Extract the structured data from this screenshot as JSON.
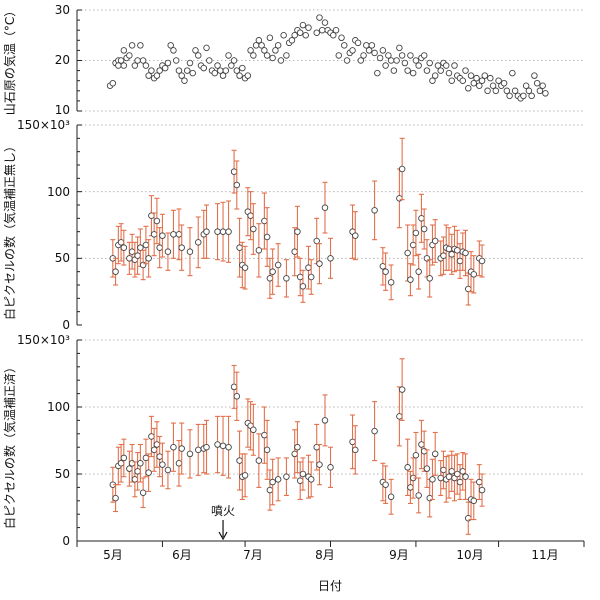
{
  "colors": {
    "error_bar": "#e2714d",
    "marker": "#444444",
    "grid": "#b8b8b8"
  },
  "x_axis": {
    "label": "日付",
    "months": [
      "5月",
      "6月",
      "7月",
      "8月",
      "9月",
      "10月",
      "11月"
    ],
    "annotation": {
      "text": "噴火",
      "x": 53
    }
  },
  "chart_data": [
    {
      "type": "scatter",
      "ylabel": "山石原の気温（°C）",
      "ylim": [
        10,
        30
      ],
      "yticks": [
        "10",
        "20",
        "30"
      ],
      "grid": true,
      "points": [
        [
          12,
          15
        ],
        [
          13,
          15.5
        ],
        [
          14,
          19.5
        ],
        [
          15,
          20
        ],
        [
          15,
          19
        ],
        [
          16,
          20
        ],
        [
          17,
          22
        ],
        [
          17,
          19
        ],
        [
          18,
          20.5
        ],
        [
          19,
          21
        ],
        [
          20,
          23
        ],
        [
          21,
          19
        ],
        [
          22,
          20
        ],
        [
          23,
          23
        ],
        [
          24,
          20
        ],
        [
          25,
          19
        ],
        [
          26,
          17
        ],
        [
          27,
          18
        ],
        [
          28,
          16.5
        ],
        [
          29,
          17
        ],
        [
          30,
          18
        ],
        [
          31,
          19
        ],
        [
          32,
          18.5
        ],
        [
          33,
          19.5
        ],
        [
          34,
          23
        ],
        [
          35,
          22
        ],
        [
          36,
          20
        ],
        [
          37,
          18
        ],
        [
          38,
          17
        ],
        [
          39,
          16
        ],
        [
          40,
          18
        ],
        [
          41,
          19.5
        ],
        [
          42,
          17.5
        ],
        [
          43,
          22
        ],
        [
          44,
          21
        ],
        [
          45,
          19
        ],
        [
          46,
          18.5
        ],
        [
          47,
          22.5
        ],
        [
          48,
          20
        ],
        [
          49,
          18
        ],
        [
          50,
          17.5
        ],
        [
          51,
          19
        ],
        [
          52,
          18
        ],
        [
          53,
          17
        ],
        [
          54,
          18
        ],
        [
          55,
          21
        ],
        [
          56,
          19
        ],
        [
          57,
          20
        ],
        [
          58,
          18
        ],
        [
          59,
          17
        ],
        [
          60,
          18.5
        ],
        [
          61,
          16.5
        ],
        [
          62,
          17
        ],
        [
          63,
          22
        ],
        [
          64,
          21
        ],
        [
          65,
          23
        ],
        [
          66,
          24
        ],
        [
          67,
          23
        ],
        [
          68,
          22
        ],
        [
          69,
          21
        ],
        [
          70,
          24.5
        ],
        [
          71,
          20.5
        ],
        [
          72,
          22
        ],
        [
          73,
          23
        ],
        [
          74,
          20
        ],
        [
          75,
          25
        ],
        [
          76,
          21
        ],
        [
          77,
          23.5
        ],
        [
          78,
          24
        ],
        [
          79,
          25
        ],
        [
          80,
          26
        ],
        [
          81,
          25.5
        ],
        [
          82,
          27
        ],
        [
          83,
          25
        ],
        [
          84,
          26.5
        ],
        [
          87,
          25.5
        ],
        [
          88,
          28.5
        ],
        [
          89,
          26
        ],
        [
          90,
          27.5
        ],
        [
          91,
          26
        ],
        [
          92,
          25.5
        ],
        [
          93,
          25
        ],
        [
          94,
          26
        ],
        [
          95,
          21
        ],
        [
          96,
          24.5
        ],
        [
          97,
          23
        ],
        [
          98,
          20
        ],
        [
          99,
          21.5
        ],
        [
          100,
          22
        ],
        [
          101,
          24
        ],
        [
          102,
          23.5
        ],
        [
          103,
          20
        ],
        [
          104,
          21
        ],
        [
          105,
          23
        ],
        [
          106,
          22
        ],
        [
          107,
          23
        ],
        [
          108,
          21.5
        ],
        [
          109,
          17.5
        ],
        [
          110,
          20.5
        ],
        [
          111,
          22
        ],
        [
          112,
          19
        ],
        [
          113,
          21
        ],
        [
          114,
          20
        ],
        [
          115,
          18
        ],
        [
          116,
          20
        ],
        [
          117,
          22.5
        ],
        [
          118,
          21
        ],
        [
          119,
          19.5
        ],
        [
          120,
          18
        ],
        [
          121,
          21
        ],
        [
          122,
          17.5
        ],
        [
          123,
          20
        ],
        [
          124,
          19
        ],
        [
          125,
          20.5
        ],
        [
          126,
          21
        ],
        [
          127,
          18
        ],
        [
          128,
          19.5
        ],
        [
          129,
          16
        ],
        [
          130,
          17
        ],
        [
          131,
          19
        ],
        [
          132,
          18
        ],
        [
          133,
          19.5
        ],
        [
          134,
          19
        ],
        [
          135,
          17.5
        ],
        [
          136,
          16
        ],
        [
          137,
          19
        ],
        [
          138,
          17
        ],
        [
          139,
          16.5
        ],
        [
          140,
          16
        ],
        [
          141,
          18
        ],
        [
          142,
          14.5
        ],
        [
          143,
          17
        ],
        [
          144,
          15.5
        ],
        [
          145,
          16.5
        ],
        [
          146,
          15
        ],
        [
          147,
          16
        ],
        [
          148,
          17
        ],
        [
          149,
          14
        ],
        [
          150,
          16.5
        ],
        [
          151,
          15
        ],
        [
          152,
          14
        ],
        [
          153,
          16
        ],
        [
          154,
          15
        ],
        [
          155,
          15.5
        ],
        [
          156,
          14
        ],
        [
          157,
          13
        ],
        [
          158,
          17.5
        ],
        [
          159,
          14
        ],
        [
          160,
          13
        ],
        [
          161,
          12.5
        ],
        [
          162,
          13
        ],
        [
          163,
          15
        ],
        [
          164,
          14
        ],
        [
          165,
          13
        ],
        [
          166,
          17
        ],
        [
          167,
          15.5
        ],
        [
          168,
          14
        ],
        [
          169,
          15
        ],
        [
          170,
          13.5
        ]
      ]
    },
    {
      "type": "scatter",
      "ylabel": "白ピクセルの数（気温補正無し）",
      "ylim": [
        0,
        150
      ],
      "yticks": [
        "0",
        "50",
        "100",
        "150×10³"
      ],
      "grid": true,
      "points": [
        [
          13,
          50,
          14
        ],
        [
          14,
          40,
          10
        ],
        [
          15,
          60,
          14
        ],
        [
          16,
          62,
          14
        ],
        [
          17,
          58,
          13
        ],
        [
          19,
          50,
          12
        ],
        [
          20,
          55,
          13
        ],
        [
          21,
          49,
          13
        ],
        [
          22,
          52,
          14
        ],
        [
          23,
          58,
          14
        ],
        [
          24,
          45,
          11
        ],
        [
          25,
          60,
          14
        ],
        [
          26,
          50,
          14
        ],
        [
          27,
          82,
          15
        ],
        [
          28,
          68,
          16
        ],
        [
          29,
          78,
          17
        ],
        [
          30,
          58,
          15
        ],
        [
          31,
          67,
          16
        ],
        [
          33,
          55,
          14
        ],
        [
          35,
          68,
          18
        ],
        [
          37,
          68,
          19
        ],
        [
          38,
          58,
          17
        ],
        [
          41,
          55,
          18
        ],
        [
          44,
          62,
          19
        ],
        [
          46,
          68,
          18
        ],
        [
          47,
          70,
          20
        ],
        [
          51,
          70,
          21
        ],
        [
          53,
          70,
          22
        ],
        [
          55,
          70,
          23
        ],
        [
          57,
          115,
          16
        ],
        [
          58,
          105,
          18
        ],
        [
          59,
          58,
          22
        ],
        [
          60,
          45,
          17
        ],
        [
          61,
          43,
          16
        ],
        [
          62,
          85,
          18
        ],
        [
          63,
          82,
          18
        ],
        [
          64,
          72,
          19
        ],
        [
          66,
          56,
          20
        ],
        [
          68,
          78,
          21
        ],
        [
          69,
          66,
          22
        ],
        [
          70,
          35,
          15
        ],
        [
          71,
          40,
          17
        ],
        [
          73,
          45,
          16
        ],
        [
          76,
          35,
          14
        ],
        [
          79,
          55,
          18
        ],
        [
          80,
          70,
          19
        ],
        [
          81,
          36,
          14
        ],
        [
          82,
          29,
          12
        ],
        [
          84,
          43,
          16
        ],
        [
          85,
          36,
          13
        ],
        [
          87,
          63,
          17
        ],
        [
          88,
          46,
          15
        ],
        [
          90,
          88,
          19
        ],
        [
          92,
          50,
          15
        ],
        [
          100,
          70,
          20
        ],
        [
          101,
          67,
          18
        ],
        [
          108,
          86,
          22
        ],
        [
          111,
          44,
          14
        ],
        [
          112,
          40,
          14
        ],
        [
          114,
          32,
          13
        ],
        [
          117,
          95,
          22
        ],
        [
          118,
          117,
          23
        ],
        [
          120,
          54,
          21
        ],
        [
          121,
          34,
          12
        ],
        [
          122,
          60,
          15
        ],
        [
          123,
          69,
          17
        ],
        [
          124,
          40,
          13
        ],
        [
          125,
          80,
          18
        ],
        [
          126,
          72,
          15
        ],
        [
          127,
          50,
          14
        ],
        [
          128,
          35,
          14
        ],
        [
          129,
          60,
          15
        ],
        [
          130,
          63,
          16
        ],
        [
          132,
          50,
          13
        ],
        [
          133,
          52,
          14
        ],
        [
          134,
          58,
          17
        ],
        [
          135,
          57,
          16
        ],
        [
          136,
          53,
          15
        ],
        [
          137,
          57,
          17
        ],
        [
          138,
          56,
          15
        ],
        [
          139,
          48,
          13
        ],
        [
          140,
          55,
          14
        ],
        [
          141,
          54,
          17
        ],
        [
          142,
          27,
          12
        ],
        [
          143,
          40,
          15
        ],
        [
          144,
          38,
          14
        ],
        [
          146,
          50,
          13
        ],
        [
          147,
          48,
          12
        ]
      ]
    },
    {
      "type": "scatter",
      "ylabel": "白ピクセルの数（気温補正済）",
      "ylim": [
        0,
        150
      ],
      "yticks": [
        "0",
        "50",
        "100",
        "150×10³"
      ],
      "grid": true,
      "points": [
        [
          13,
          42,
          13
        ],
        [
          14,
          32,
          10
        ],
        [
          15,
          56,
          14
        ],
        [
          16,
          58,
          14
        ],
        [
          17,
          62,
          14
        ],
        [
          19,
          54,
          13
        ],
        [
          20,
          58,
          14
        ],
        [
          21,
          46,
          13
        ],
        [
          22,
          52,
          14
        ],
        [
          23,
          58,
          14
        ],
        [
          24,
          36,
          11
        ],
        [
          25,
          62,
          14
        ],
        [
          26,
          51,
          14
        ],
        [
          27,
          78,
          15
        ],
        [
          28,
          68,
          16
        ],
        [
          29,
          72,
          17
        ],
        [
          30,
          63,
          15
        ],
        [
          31,
          57,
          16
        ],
        [
          33,
          53,
          14
        ],
        [
          35,
          70,
          18
        ],
        [
          37,
          58,
          17
        ],
        [
          38,
          69,
          19
        ],
        [
          41,
          65,
          18
        ],
        [
          44,
          68,
          19
        ],
        [
          46,
          69,
          18
        ],
        [
          47,
          70,
          20
        ],
        [
          51,
          72,
          21
        ],
        [
          53,
          71,
          22
        ],
        [
          55,
          70,
          23
        ],
        [
          57,
          115,
          16
        ],
        [
          58,
          108,
          18
        ],
        [
          59,
          60,
          22
        ],
        [
          60,
          48,
          17
        ],
        [
          61,
          49,
          16
        ],
        [
          62,
          88,
          18
        ],
        [
          63,
          86,
          18
        ],
        [
          64,
          83,
          19
        ],
        [
          66,
          60,
          20
        ],
        [
          68,
          79,
          21
        ],
        [
          69,
          68,
          22
        ],
        [
          70,
          38,
          15
        ],
        [
          71,
          44,
          17
        ],
        [
          73,
          46,
          16
        ],
        [
          76,
          48,
          14
        ],
        [
          79,
          65,
          18
        ],
        [
          80,
          70,
          19
        ],
        [
          81,
          45,
          14
        ],
        [
          82,
          50,
          12
        ],
        [
          84,
          48,
          16
        ],
        [
          85,
          46,
          13
        ],
        [
          87,
          70,
          17
        ],
        [
          88,
          57,
          15
        ],
        [
          90,
          90,
          19
        ],
        [
          92,
          55,
          15
        ],
        [
          100,
          74,
          20
        ],
        [
          101,
          68,
          18
        ],
        [
          108,
          82,
          22
        ],
        [
          111,
          44,
          14
        ],
        [
          112,
          42,
          14
        ],
        [
          114,
          33,
          13
        ],
        [
          117,
          93,
          22
        ],
        [
          118,
          113,
          23
        ],
        [
          120,
          55,
          21
        ],
        [
          121,
          40,
          12
        ],
        [
          122,
          47,
          15
        ],
        [
          123,
          64,
          17
        ],
        [
          124,
          34,
          13
        ],
        [
          125,
          72,
          18
        ],
        [
          126,
          67,
          15
        ],
        [
          127,
          54,
          14
        ],
        [
          128,
          32,
          14
        ],
        [
          129,
          46,
          15
        ],
        [
          130,
          65,
          16
        ],
        [
          132,
          47,
          13
        ],
        [
          133,
          53,
          14
        ],
        [
          134,
          46,
          17
        ],
        [
          135,
          48,
          16
        ],
        [
          136,
          52,
          15
        ],
        [
          137,
          47,
          17
        ],
        [
          138,
          50,
          15
        ],
        [
          139,
          44,
          13
        ],
        [
          140,
          52,
          14
        ],
        [
          141,
          48,
          17
        ],
        [
          142,
          17,
          12
        ],
        [
          143,
          31,
          15
        ],
        [
          144,
          30,
          14
        ],
        [
          146,
          44,
          13
        ],
        [
          147,
          38,
          12
        ]
      ]
    }
  ]
}
